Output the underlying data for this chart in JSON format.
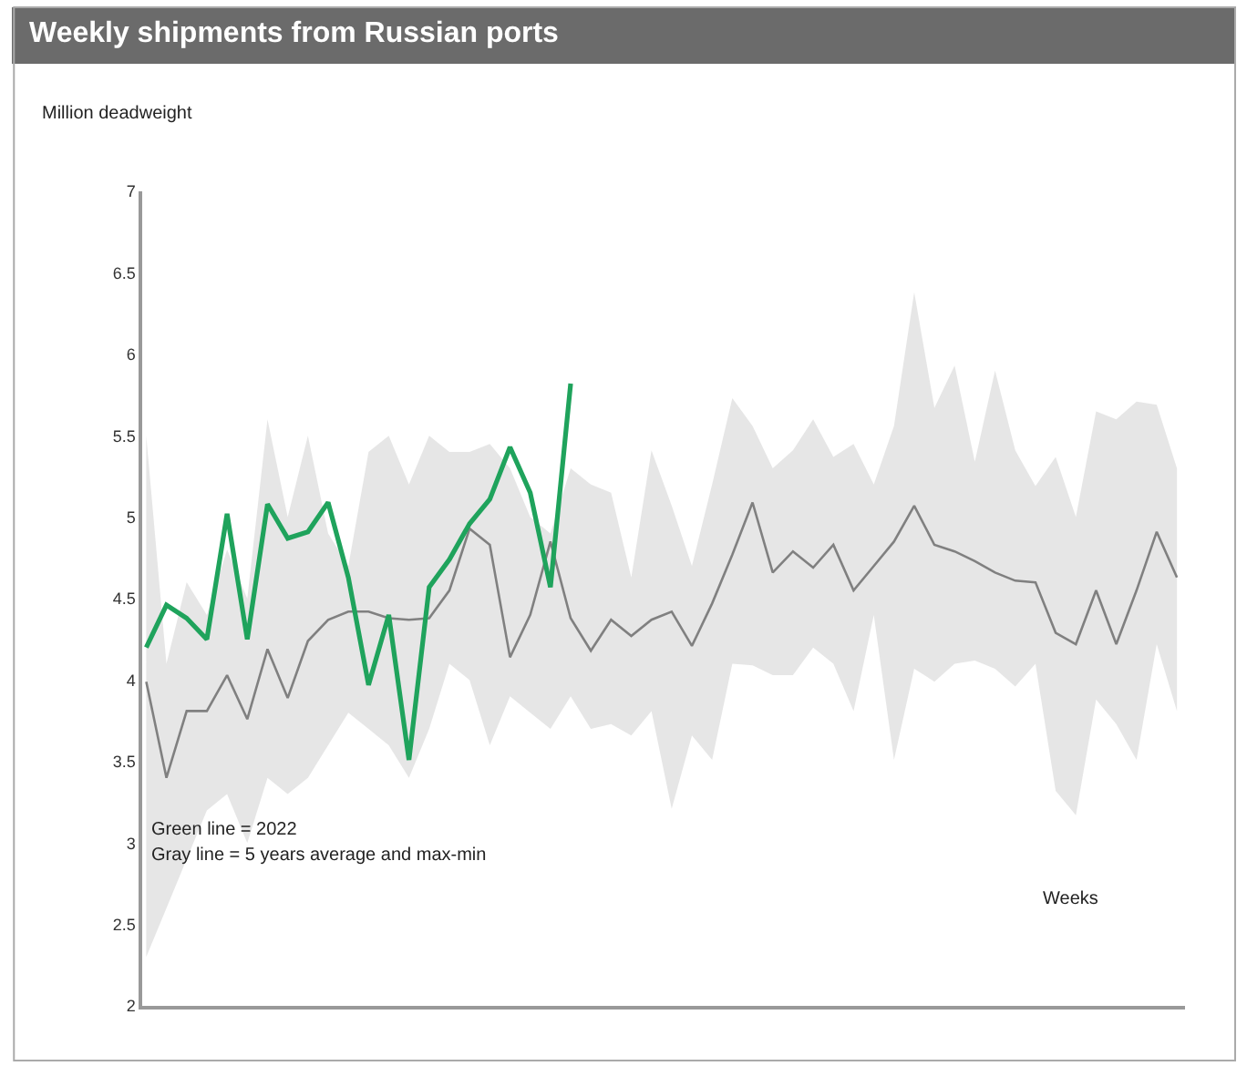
{
  "chart_data": {
    "type": "line",
    "title": "Weekly shipments from Russian ports",
    "ylabel": "Million deadweight",
    "xlabel": "Weeks",
    "categories": [
      null,
      null,
      null,
      null,
      null,
      null,
      null,
      null,
      null,
      null,
      null,
      null,
      null,
      null,
      null,
      null,
      null,
      null,
      null,
      null,
      null,
      null,
      null,
      null,
      null,
      null,
      null,
      null,
      null,
      null,
      null,
      null,
      null,
      null,
      null,
      null,
      null,
      null,
      null,
      null,
      null,
      null,
      null,
      null,
      null,
      null,
      null,
      null,
      null,
      null,
      null,
      null
    ],
    "series": [
      {
        "color": "#808080",
        "values": [
          3.99,
          3.4,
          3.81,
          3.81,
          4.03,
          3.76,
          4.19,
          3.89,
          4.24,
          4.37,
          4.42,
          4.42,
          4.38,
          4.37,
          4.38,
          4.55,
          4.93,
          4.83,
          4.14,
          4.4,
          4.85,
          4.38,
          4.18,
          4.37,
          4.27,
          4.37,
          4.42,
          4.21,
          4.47,
          4.77,
          5.09,
          4.66,
          4.79,
          4.69,
          4.83,
          4.55,
          4.7,
          4.85,
          5.07,
          4.83,
          4.79,
          4.73,
          4.66,
          4.61,
          4.6,
          4.29,
          4.22,
          4.55,
          4.22,
          4.55,
          4.91,
          4.63
        ],
        "lower": [
          2.3,
          2.6,
          2.9,
          3.2,
          3.3,
          3.0,
          3.4,
          3.3,
          3.4,
          3.6,
          3.8,
          3.7,
          3.6,
          3.4,
          3.7,
          4.1,
          4.0,
          3.6,
          3.9,
          3.8,
          3.7,
          3.9,
          3.7,
          3.73,
          3.66,
          3.81,
          3.21,
          3.66,
          3.51,
          4.1,
          4.09,
          4.03,
          4.03,
          4.2,
          4.1,
          3.81,
          4.4,
          3.51,
          4.07,
          3.99,
          4.1,
          4.12,
          4.07,
          3.96,
          4.1,
          3.32,
          3.17,
          3.88,
          3.73,
          3.51,
          4.22,
          3.81
        ],
        "upper": [
          5.5,
          4.1,
          4.6,
          4.4,
          4.8,
          4.5,
          5.6,
          5.0,
          5.5,
          4.9,
          4.7,
          5.4,
          5.5,
          5.2,
          5.5,
          5.4,
          5.4,
          5.45,
          5.3,
          5.0,
          4.9,
          5.3,
          5.2,
          5.15,
          4.63,
          5.41,
          5.07,
          4.7,
          5.2,
          5.73,
          5.56,
          5.3,
          5.41,
          5.6,
          5.37,
          5.45,
          5.2,
          5.56,
          6.38,
          5.67,
          5.93,
          5.34,
          5.9,
          5.41,
          5.19,
          5.37,
          5.0,
          5.65,
          5.6,
          5.71,
          5.69,
          5.3
        ]
      },
      {
        "color": "#1fa35c",
        "values": [
          4.2,
          4.46,
          4.38,
          4.25,
          5.02,
          4.25,
          5.08,
          4.87,
          4.91,
          5.09,
          4.63,
          3.97,
          4.4,
          3.51,
          4.57,
          4.74,
          4.96,
          5.11,
          5.43,
          5.15,
          4.57,
          5.82,
          null,
          null,
          null,
          null,
          null,
          null,
          null,
          null,
          null,
          null,
          null,
          null,
          null,
          null,
          null,
          null,
          null,
          null,
          null,
          null,
          null,
          null,
          null,
          null,
          null,
          null,
          null,
          null,
          null,
          null
        ]
      }
    ],
    "ylim": [
      2,
      7
    ],
    "yticks": [
      2,
      2.5,
      3,
      3.5,
      4,
      4.5,
      5,
      5.5,
      6,
      6.5,
      7
    ],
    "annotations": [
      "Green line = 2022",
      "Gray line = 5 years average and max-min"
    ]
  }
}
